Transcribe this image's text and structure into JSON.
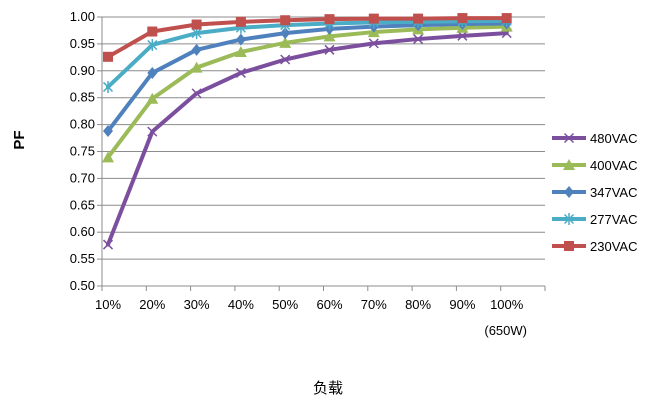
{
  "chart_data": {
    "type": "line",
    "ylabel": "PF",
    "xlabel": "负载",
    "categories": [
      "10%",
      "20%",
      "30%",
      "40%",
      "50%",
      "60%",
      "70%",
      "80%",
      "90%",
      "100%"
    ],
    "last_category_note": "(650W)",
    "ylim": [
      0.5,
      1.0
    ],
    "yticks": [
      "0.50",
      "0.55",
      "0.60",
      "0.65",
      "0.70",
      "0.75",
      "0.80",
      "0.85",
      "0.90",
      "0.95",
      "1.00"
    ],
    "grid": true,
    "legend_position": "right",
    "series": [
      {
        "name": "480VAC",
        "color": "#7B4F9E",
        "marker": "x",
        "values": [
          0.577,
          0.787,
          0.858,
          0.896,
          0.921,
          0.939,
          0.951,
          0.959,
          0.965,
          0.97
        ]
      },
      {
        "name": "400VAC",
        "color": "#9BBB59",
        "marker": "triangle",
        "values": [
          0.739,
          0.848,
          0.906,
          0.935,
          0.952,
          0.964,
          0.972,
          0.977,
          0.98,
          0.982
        ]
      },
      {
        "name": "347VAC",
        "color": "#4F81BD",
        "marker": "diamond",
        "values": [
          0.788,
          0.896,
          0.939,
          0.958,
          0.97,
          0.978,
          0.982,
          0.985,
          0.987,
          0.988
        ]
      },
      {
        "name": "277VAC",
        "color": "#4BACC6",
        "marker": "star",
        "values": [
          0.87,
          0.948,
          0.97,
          0.98,
          0.985,
          0.988,
          0.99,
          0.991,
          0.992,
          0.993
        ]
      },
      {
        "name": "230VAC",
        "color": "#C0504D",
        "marker": "square",
        "values": [
          0.926,
          0.973,
          0.986,
          0.991,
          0.994,
          0.996,
          0.997,
          0.997,
          0.998,
          0.998
        ]
      }
    ]
  }
}
